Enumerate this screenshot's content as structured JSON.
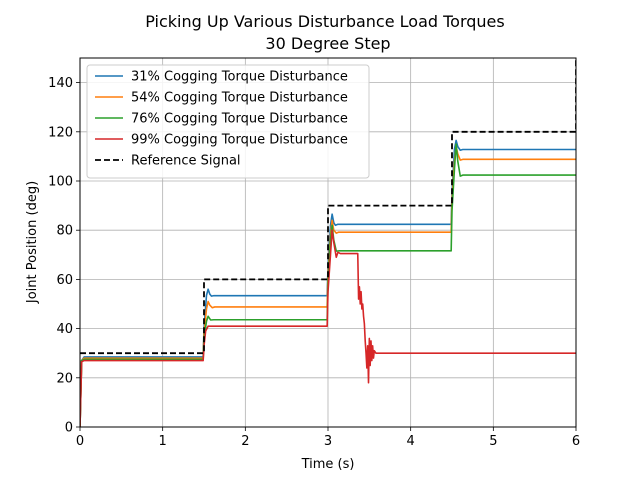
{
  "chart_data": {
    "type": "line",
    "title": "Picking Up Various Disturbance Load Torques",
    "subtitle": "30 Degree Step",
    "xlabel": "Time (s)",
    "ylabel": "Joint Position (deg)",
    "xlim": [
      0,
      6
    ],
    "ylim": [
      0,
      150
    ],
    "xticks": [
      0,
      1,
      2,
      3,
      4,
      5,
      6
    ],
    "yticks": [
      0,
      20,
      40,
      60,
      80,
      100,
      120,
      140
    ],
    "grid": true,
    "legend_position": "top-left",
    "series": [
      {
        "name": "31% Cogging Torque Disturbance",
        "color": "#1f77b4",
        "dash": false,
        "x": [
          0,
          0.02,
          0.05,
          1.49,
          1.5,
          1.53,
          1.55,
          1.57,
          1.59,
          1.62,
          2.99,
          3.0,
          3.03,
          3.05,
          3.07,
          3.09,
          3.12,
          4.49,
          4.5,
          4.53,
          4.55,
          4.57,
          4.6,
          4.63,
          6.0
        ],
        "y": [
          0,
          27,
          28.5,
          28.5,
          40,
          53.5,
          56,
          54,
          53.2,
          53.4,
          53.4,
          65,
          82,
          86.5,
          83,
          82,
          82.4,
          82.4,
          95,
          113,
          116.5,
          114,
          112.5,
          112.8,
          112.8
        ]
      },
      {
        "name": "54% Cogging Torque Disturbance",
        "color": "#ff7f0e",
        "dash": false,
        "x": [
          0,
          0.02,
          0.05,
          1.49,
          1.5,
          1.53,
          1.55,
          1.57,
          1.6,
          1.63,
          2.99,
          3.0,
          3.03,
          3.05,
          3.07,
          3.1,
          3.13,
          4.49,
          4.5,
          4.53,
          4.55,
          4.57,
          4.6,
          4.63,
          6.0
        ],
        "y": [
          0,
          27,
          28,
          28,
          38,
          48,
          51,
          49.5,
          48.5,
          48.8,
          48.8,
          62,
          78,
          84,
          80,
          78.8,
          79.2,
          79.2,
          92,
          108,
          114,
          111,
          108.5,
          108.8,
          108.8
        ]
      },
      {
        "name": "76% Cogging Torque Disturbance",
        "color": "#2ca02c",
        "dash": false,
        "x": [
          0,
          0.02,
          0.05,
          1.49,
          1.5,
          1.53,
          1.55,
          1.58,
          1.62,
          2.99,
          3.0,
          3.03,
          3.05,
          3.07,
          3.1,
          3.13,
          4.49,
          4.5,
          4.53,
          4.55,
          4.57,
          4.6,
          4.63,
          6.0
        ],
        "y": [
          0,
          27,
          27.5,
          27.5,
          36,
          43,
          45,
          43.5,
          43.6,
          43.6,
          58,
          76,
          82,
          76,
          71.5,
          71.6,
          71.6,
          88,
          105,
          115,
          108,
          102,
          102.4,
          102.4
        ]
      },
      {
        "name": "99% Cogging Torque Disturbance",
        "color": "#d62728",
        "dash": false,
        "x": [
          0,
          0.02,
          0.05,
          1.49,
          1.5,
          1.52,
          1.55,
          1.58,
          2.99,
          3.0,
          3.03,
          3.05,
          3.07,
          3.1,
          3.12,
          3.15,
          3.2,
          3.36,
          3.37,
          3.38,
          3.39,
          3.4,
          3.41,
          3.42,
          3.43,
          3.44,
          3.45,
          3.46,
          3.47,
          3.48,
          3.49,
          3.5,
          3.51,
          3.52,
          3.53,
          3.54,
          3.55,
          3.56,
          3.58,
          3.6,
          4.0,
          6.0
        ],
        "y": [
          0,
          26.5,
          27,
          27,
          33,
          39,
          41,
          41,
          41,
          55,
          70,
          80,
          75,
          69,
          71,
          70.5,
          70.5,
          70.5,
          52,
          57,
          50,
          55,
          48,
          50,
          45,
          42,
          35,
          30,
          24,
          33,
          18,
          36,
          25,
          35,
          27,
          33,
          28,
          31,
          30,
          30,
          30,
          30
        ]
      },
      {
        "name": "Reference Signal",
        "color": "#000000",
        "dash": true,
        "x": [
          0,
          1.5,
          1.5,
          3.0,
          3.0,
          4.5,
          4.5,
          6.0,
          6.0
        ],
        "y": [
          30,
          30,
          60,
          60,
          90,
          90,
          120,
          120,
          150
        ]
      }
    ]
  }
}
